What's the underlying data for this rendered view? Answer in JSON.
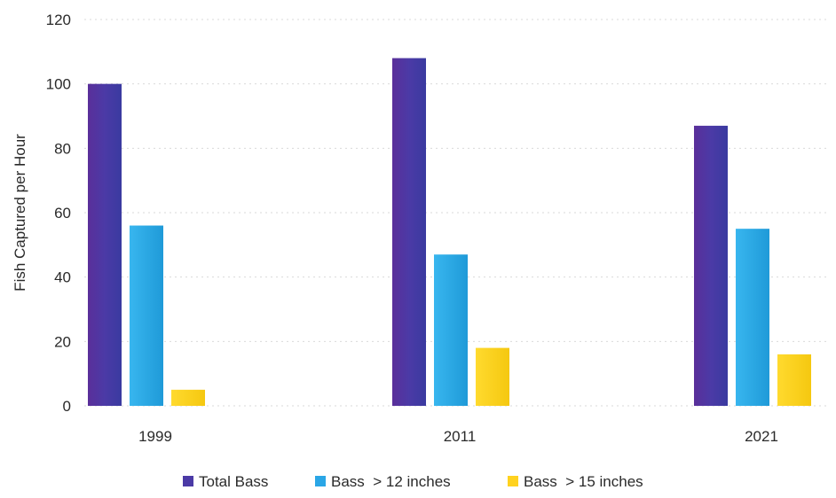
{
  "chart_data": {
    "type": "bar",
    "categories": [
      "1999",
      "2011",
      "2021"
    ],
    "series": [
      {
        "name": "Total Bass",
        "values": [
          100,
          108,
          87
        ],
        "color": "#4b3aa6"
      },
      {
        "name": "Bass  > 12 inches",
        "values": [
          56,
          47,
          55
        ],
        "color": "#2aa6e6"
      },
      {
        "name": "Bass  > 15 inches",
        "values": [
          5,
          18,
          16
        ],
        "color": "#ffd21f"
      }
    ],
    "title": "",
    "xlabel": "",
    "ylabel": "Fish Captured per Hour",
    "ylim": [
      0,
      120
    ],
    "yticks": [
      0,
      20,
      40,
      60,
      80,
      100,
      120
    ],
    "grid": true,
    "legend": "bottom"
  }
}
